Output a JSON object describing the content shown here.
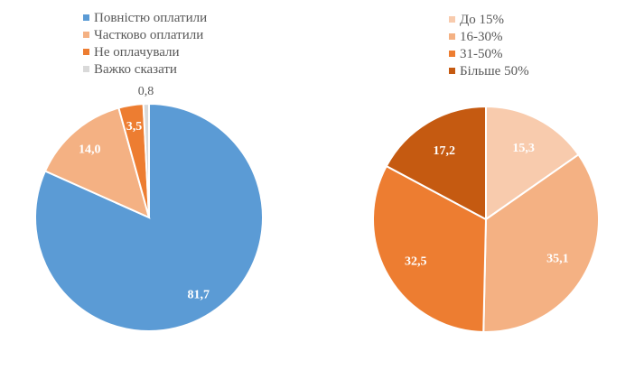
{
  "chart_data": [
    {
      "type": "pie",
      "title": "",
      "start": "top",
      "direction": "clockwise",
      "legend_position": "top",
      "categories": [
        "Повністю оплатили",
        "Частково оплатили",
        "Не оплачували",
        "Важко сказати"
      ],
      "values": [
        81.7,
        14.0,
        3.5,
        0.8
      ],
      "labels": [
        "81,7",
        "14,0",
        "3,5",
        "0,8"
      ],
      "colors": [
        "#5B9BD5",
        "#F4B183",
        "#ED7D31",
        "#D9D9D9"
      ]
    },
    {
      "type": "pie",
      "title": "",
      "start": "top",
      "direction": "clockwise",
      "legend_position": "top",
      "categories": [
        "До 15%",
        "16-30%",
        "31-50%",
        "Більше 50%"
      ],
      "values": [
        15.3,
        35.1,
        32.5,
        17.2
      ],
      "labels": [
        "15,3",
        "35,1",
        "32,5",
        "17,2"
      ],
      "colors": [
        "#F8CBAD",
        "#F4B183",
        "#ED7D31",
        "#C55A11"
      ]
    }
  ]
}
